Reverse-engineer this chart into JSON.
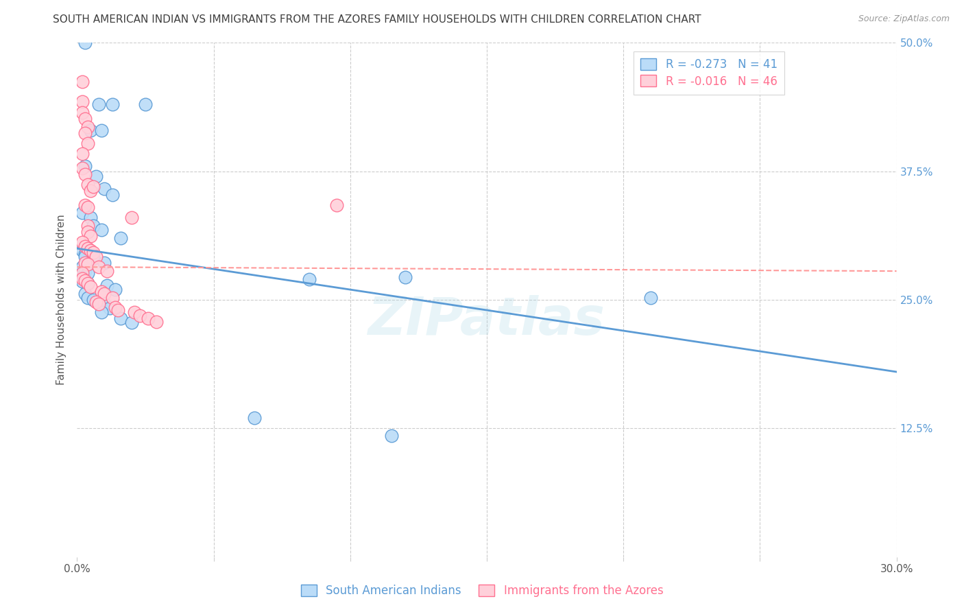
{
  "title": "SOUTH AMERICAN INDIAN VS IMMIGRANTS FROM THE AZORES FAMILY HOUSEHOLDS WITH CHILDREN CORRELATION CHART",
  "source": "Source: ZipAtlas.com",
  "ylabel": "Family Households with Children",
  "xlim": [
    0,
    0.3
  ],
  "ylim": [
    0,
    0.5
  ],
  "legend_blue_R": "-0.273",
  "legend_blue_N": "41",
  "legend_pink_R": "-0.016",
  "legend_pink_N": "46",
  "legend_label_blue": "South American Indians",
  "legend_label_pink": "Immigrants from the Azores",
  "blue_scatter": [
    [
      0.003,
      0.5
    ],
    [
      0.008,
      0.44
    ],
    [
      0.013,
      0.44
    ],
    [
      0.025,
      0.44
    ],
    [
      0.005,
      0.415
    ],
    [
      0.009,
      0.415
    ],
    [
      0.003,
      0.38
    ],
    [
      0.007,
      0.37
    ],
    [
      0.01,
      0.358
    ],
    [
      0.013,
      0.352
    ],
    [
      0.002,
      0.335
    ],
    [
      0.005,
      0.33
    ],
    [
      0.006,
      0.322
    ],
    [
      0.009,
      0.318
    ],
    [
      0.016,
      0.31
    ],
    [
      0.002,
      0.298
    ],
    [
      0.003,
      0.295
    ],
    [
      0.003,
      0.292
    ],
    [
      0.006,
      0.29
    ],
    [
      0.01,
      0.286
    ],
    [
      0.002,
      0.282
    ],
    [
      0.003,
      0.278
    ],
    [
      0.004,
      0.276
    ],
    [
      0.002,
      0.272
    ],
    [
      0.002,
      0.268
    ],
    [
      0.004,
      0.266
    ],
    [
      0.011,
      0.264
    ],
    [
      0.014,
      0.26
    ],
    [
      0.003,
      0.256
    ],
    [
      0.004,
      0.252
    ],
    [
      0.006,
      0.25
    ],
    [
      0.01,
      0.246
    ],
    [
      0.012,
      0.242
    ],
    [
      0.009,
      0.238
    ],
    [
      0.016,
      0.232
    ],
    [
      0.02,
      0.228
    ],
    [
      0.12,
      0.272
    ],
    [
      0.085,
      0.27
    ],
    [
      0.21,
      0.252
    ],
    [
      0.065,
      0.135
    ],
    [
      0.115,
      0.118
    ]
  ],
  "pink_scatter": [
    [
      0.002,
      0.462
    ],
    [
      0.002,
      0.443
    ],
    [
      0.002,
      0.432
    ],
    [
      0.003,
      0.426
    ],
    [
      0.004,
      0.418
    ],
    [
      0.003,
      0.412
    ],
    [
      0.004,
      0.402
    ],
    [
      0.002,
      0.392
    ],
    [
      0.002,
      0.378
    ],
    [
      0.003,
      0.372
    ],
    [
      0.004,
      0.362
    ],
    [
      0.005,
      0.356
    ],
    [
      0.003,
      0.342
    ],
    [
      0.004,
      0.34
    ],
    [
      0.095,
      0.342
    ],
    [
      0.004,
      0.322
    ],
    [
      0.004,
      0.316
    ],
    [
      0.005,
      0.312
    ],
    [
      0.002,
      0.306
    ],
    [
      0.003,
      0.302
    ],
    [
      0.004,
      0.3
    ],
    [
      0.005,
      0.298
    ],
    [
      0.006,
      0.296
    ],
    [
      0.007,
      0.292
    ],
    [
      0.003,
      0.286
    ],
    [
      0.004,
      0.285
    ],
    [
      0.008,
      0.282
    ],
    [
      0.011,
      0.278
    ],
    [
      0.002,
      0.276
    ],
    [
      0.002,
      0.271
    ],
    [
      0.003,
      0.269
    ],
    [
      0.004,
      0.266
    ],
    [
      0.005,
      0.263
    ],
    [
      0.009,
      0.258
    ],
    [
      0.01,
      0.256
    ],
    [
      0.013,
      0.252
    ],
    [
      0.007,
      0.248
    ],
    [
      0.008,
      0.246
    ],
    [
      0.014,
      0.243
    ],
    [
      0.015,
      0.24
    ],
    [
      0.021,
      0.238
    ],
    [
      0.023,
      0.235
    ],
    [
      0.026,
      0.232
    ],
    [
      0.029,
      0.229
    ],
    [
      0.02,
      0.33
    ],
    [
      0.006,
      0.36
    ]
  ],
  "blue_line_x0": 0.0,
  "blue_line_y0": 0.3,
  "blue_line_x1": 0.3,
  "blue_line_y1": 0.18,
  "pink_line_x0": 0.0,
  "pink_line_y0": 0.282,
  "pink_line_x1": 0.3,
  "pink_line_y1": 0.278,
  "blue_line_color": "#5B9BD5",
  "pink_line_color": "#FF9999",
  "blue_scatter_facecolor": "#BBDCF8",
  "pink_scatter_facecolor": "#FFD0DA",
  "blue_edge_color": "#5B9BD5",
  "pink_edge_color": "#FF7090",
  "background_color": "#FFFFFF",
  "grid_color": "#CCCCCC",
  "title_color": "#404040",
  "right_axis_color": "#5B9BD5",
  "watermark": "ZIPatlas"
}
